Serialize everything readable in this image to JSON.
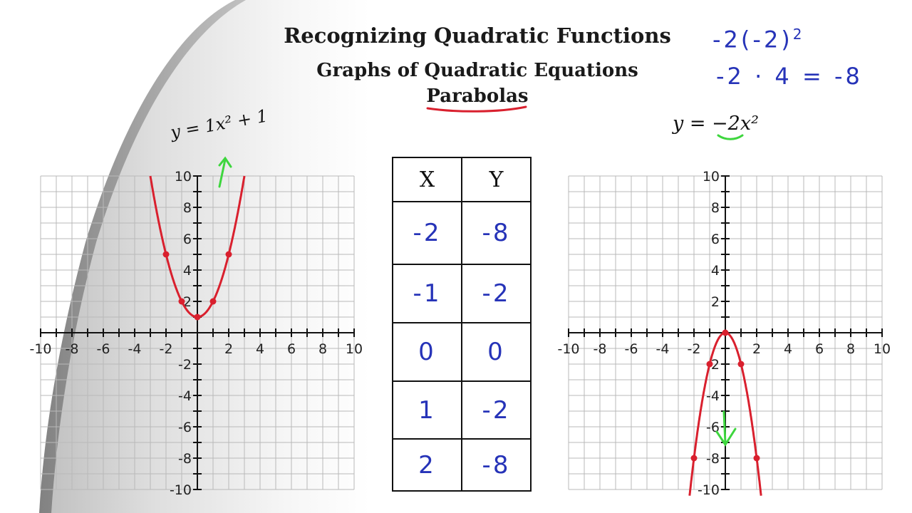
{
  "titles": {
    "main": "Recognizing Quadratic Functions",
    "sub": "Graphs of Quadratic Equations",
    "topic": "Parabolas"
  },
  "handwritten_work": {
    "line1": "-2(-2)",
    "line1_exponent": "2",
    "line2": "-2 · 4 = -8"
  },
  "left_graph": {
    "equation": "y = 1x² + 1",
    "curve_color": "#d9202e",
    "arrow_color": "#3ed63e",
    "x_ticks": [
      "-10",
      "-8",
      "-6",
      "-4",
      "-2",
      "2",
      "4",
      "6",
      "8",
      "10"
    ],
    "y_ticks": [
      "10",
      "8",
      "6",
      "4",
      "2",
      "-2",
      "-4",
      "-6",
      "-8",
      "-10"
    ],
    "points": [
      {
        "x": -2,
        "y": 5
      },
      {
        "x": -1,
        "y": 2
      },
      {
        "x": 0,
        "y": 1
      },
      {
        "x": 1,
        "y": 2
      },
      {
        "x": 2,
        "y": 5
      }
    ]
  },
  "right_graph": {
    "equation": "y = −2x²",
    "curve_color": "#d9202e",
    "arrow_color": "#3ed63e",
    "x_ticks": [
      "-10",
      "-8",
      "-6",
      "-4",
      "-2",
      "2",
      "4",
      "6",
      "8",
      "10"
    ],
    "y_ticks": [
      "10",
      "8",
      "6",
      "4",
      "2",
      "-2",
      "-4",
      "-6",
      "-8",
      "-10"
    ],
    "points": [
      {
        "x": -2,
        "y": -8
      },
      {
        "x": -1,
        "y": -2
      },
      {
        "x": 0,
        "y": 0
      },
      {
        "x": 1,
        "y": -2
      },
      {
        "x": 2,
        "y": -8
      }
    ]
  },
  "table": {
    "header_x": "X",
    "header_y": "Y",
    "rows": [
      {
        "x": "-2",
        "y": "-8"
      },
      {
        "x": "-1",
        "y": "-2"
      },
      {
        "x": "0",
        "y": "0"
      },
      {
        "x": "1",
        "y": "-2"
      },
      {
        "x": "2",
        "y": "-8"
      }
    ]
  }
}
